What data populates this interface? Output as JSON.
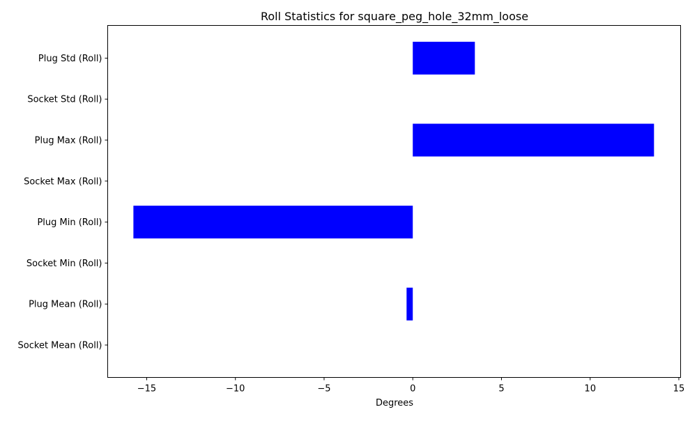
{
  "chart_data": {
    "type": "bar",
    "orientation": "horizontal",
    "title": "Roll Statistics for square_peg_hole_32mm_loose",
    "xlabel": "Degrees",
    "ylabel": "",
    "categories": [
      "Socket Mean (Roll)",
      "Plug Mean (Roll)",
      "Socket Min (Roll)",
      "Plug Min (Roll)",
      "Socket Max (Roll)",
      "Plug Max (Roll)",
      "Socket Std (Roll)",
      "Plug Std (Roll)"
    ],
    "values": [
      0,
      -0.35,
      0,
      -15.75,
      0,
      13.6,
      0,
      3.5
    ],
    "xlim": [
      -17.2,
      15.1
    ],
    "xticks": [
      -15,
      -10,
      -5,
      0,
      5,
      10,
      15
    ],
    "xtick_labels": [
      "−15",
      "−10",
      "−5",
      "0",
      "5",
      "10",
      "15"
    ],
    "bar_color": "#0000ff",
    "grid": false,
    "legend": "none"
  }
}
